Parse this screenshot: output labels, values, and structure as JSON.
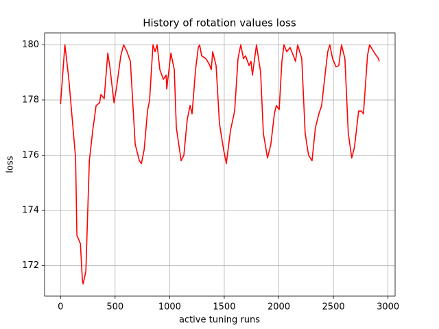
{
  "chart_data": {
    "type": "line",
    "title": "History of rotation values loss",
    "x_label": "active tuning runs",
    "y_label": "loss",
    "x": [
      0,
      40,
      75,
      138,
      150,
      182,
      200,
      207,
      232,
      264,
      295,
      326,
      358,
      370,
      400,
      433,
      452,
      490,
      515,
      552,
      578,
      609,
      640,
      684,
      722,
      741,
      766,
      797,
      816,
      847,
      866,
      885,
      910,
      942,
      967,
      973,
      1011,
      1042,
      1061,
      1105,
      1130,
      1161,
      1187,
      1205,
      1237,
      1262,
      1274,
      1293,
      1331,
      1362,
      1381,
      1394,
      1425,
      1456,
      1494,
      1519,
      1557,
      1595,
      1626,
      1651,
      1676,
      1695,
      1727,
      1745,
      1758,
      1795,
      1833,
      1858,
      1896,
      1927,
      1959,
      1977,
      2003,
      2028,
      2047,
      2072,
      2103,
      2134,
      2153,
      2172,
      2210,
      2241,
      2272,
      2304,
      2335,
      2367,
      2392,
      2423,
      2448,
      2467,
      2492,
      2524,
      2549,
      2574,
      2605,
      2636,
      2668,
      2693,
      2731,
      2756,
      2775,
      2812,
      2831,
      2869,
      2894,
      2913,
      2919
    ],
    "series": [
      {
        "name": "loss",
        "color": "#ff0000",
        "values": [
          177.85,
          180,
          178.8,
          175.9,
          173.1,
          172.8,
          171.5,
          171.34,
          171.8,
          175.8,
          176.9,
          177.8,
          177.9,
          178.2,
          178.05,
          179.7,
          179.2,
          177.9,
          178.5,
          179.6,
          180,
          179.75,
          179.4,
          176.4,
          175.8,
          175.7,
          176.2,
          177.6,
          178,
          180,
          179.75,
          180,
          179.1,
          178.75,
          178.9,
          178.4,
          179.7,
          179.1,
          177,
          175.8,
          176,
          177.3,
          177.8,
          177.5,
          179.1,
          179.9,
          180,
          179.6,
          179.5,
          179.3,
          179.1,
          179.75,
          179.25,
          177.15,
          176.2,
          175.7,
          176.9,
          177.6,
          179.5,
          180,
          179.5,
          179.6,
          179.25,
          179.4,
          178.9,
          180,
          179,
          176.8,
          175.9,
          176.4,
          177.5,
          177.8,
          177.65,
          179.4,
          180,
          179.75,
          179.9,
          179.6,
          179.4,
          180,
          179.5,
          176.8,
          176,
          175.8,
          177,
          177.5,
          177.8,
          178.9,
          179.75,
          180,
          179.5,
          179.2,
          179.25,
          180,
          179.5,
          176.8,
          175.9,
          176.3,
          177.6,
          177.6,
          177.5,
          179.6,
          180,
          179.75,
          179.6,
          179.5,
          179.4
        ]
      }
    ],
    "xlim": [
      -146,
      3065
    ],
    "ylim": [
      170.9,
      180.43
    ],
    "xticks": [
      0,
      500,
      1000,
      1500,
      2000,
      2500,
      3000
    ],
    "yticks": [
      172,
      174,
      176,
      178,
      180
    ],
    "grid": true
  }
}
